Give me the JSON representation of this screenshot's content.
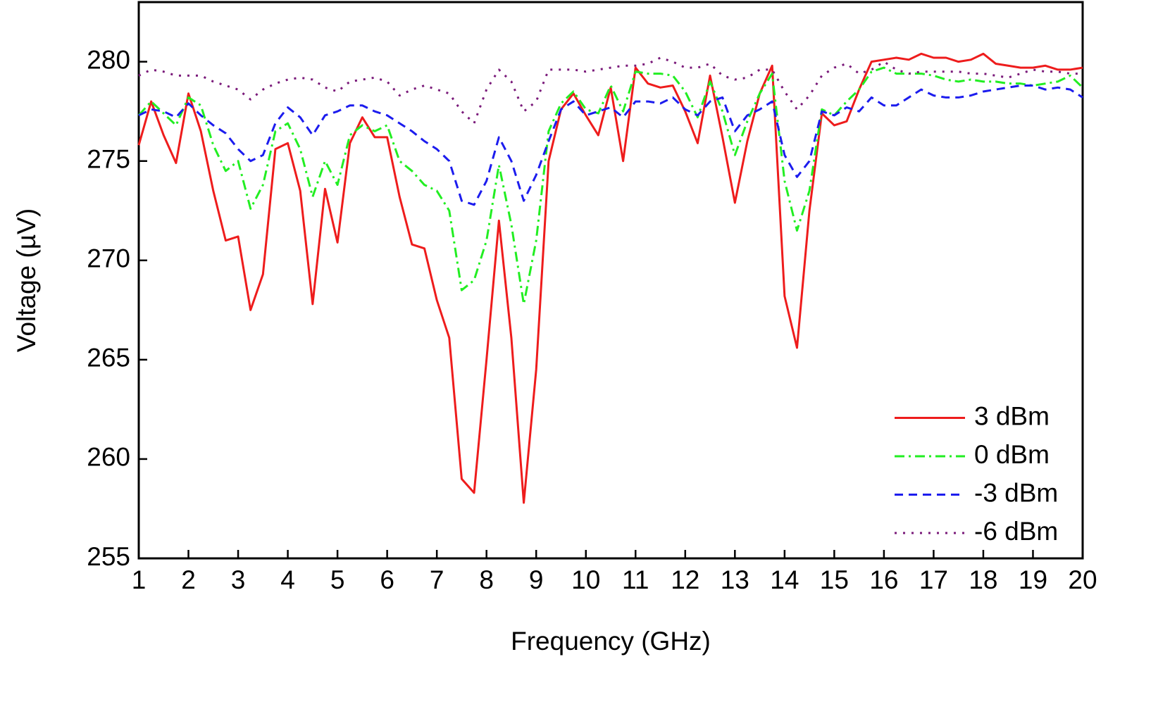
{
  "chart_data": {
    "type": "line",
    "xlabel": "Frequency (GHz)",
    "ylabel": "Voltage (µV)",
    "xlim": [
      1,
      20
    ],
    "ylim": [
      255,
      283
    ],
    "xticks": [
      1,
      2,
      3,
      4,
      5,
      6,
      7,
      8,
      9,
      10,
      11,
      12,
      13,
      14,
      15,
      16,
      17,
      18,
      19,
      20
    ],
    "yticks": [
      255,
      260,
      265,
      270,
      275,
      280
    ],
    "legend": "lower right",
    "x": [
      1,
      1.25,
      1.5,
      1.75,
      2,
      2.25,
      2.5,
      2.75,
      3,
      3.25,
      3.5,
      3.75,
      4,
      4.25,
      4.5,
      4.75,
      5,
      5.25,
      5.5,
      5.75,
      6,
      6.25,
      6.5,
      6.75,
      7,
      7.25,
      7.5,
      7.75,
      8,
      8.25,
      8.5,
      8.75,
      9,
      9.25,
      9.5,
      9.75,
      10,
      10.25,
      10.5,
      10.75,
      11,
      11.25,
      11.5,
      11.75,
      12,
      12.25,
      12.5,
      12.75,
      13,
      13.25,
      13.5,
      13.75,
      14,
      14.25,
      14.5,
      14.75,
      15,
      15.25,
      15.5,
      15.75,
      16,
      16.25,
      16.5,
      16.75,
      17,
      17.25,
      17.5,
      17.75,
      18,
      18.25,
      18.5,
      18.75,
      19,
      19.25,
      19.5,
      19.75,
      20
    ],
    "series": [
      {
        "name": "3 dBm",
        "color": "#ee1c1c",
        "dash": "solid",
        "values": [
          275.8,
          278.0,
          276.3,
          274.9,
          278.4,
          276.5,
          273.5,
          271.0,
          271.2,
          267.5,
          269.3,
          275.6,
          275.9,
          273.5,
          267.8,
          273.6,
          270.9,
          275.9,
          277.2,
          276.2,
          276.2,
          273.2,
          270.8,
          270.6,
          268.0,
          266.1,
          259.0,
          258.3,
          265.0,
          272.0,
          266.1,
          257.8,
          264.5,
          275.0,
          277.6,
          278.4,
          277.3,
          276.3,
          278.7,
          275.0,
          279.7,
          278.9,
          278.7,
          278.8,
          277.5,
          275.9,
          279.3,
          276.2,
          272.9,
          276.0,
          278.4,
          279.8,
          268.2,
          265.6,
          272.5,
          277.4,
          276.8,
          277.0,
          278.6,
          280.0,
          280.1,
          280.2,
          280.1,
          280.4,
          280.2,
          280.2,
          280.0,
          280.1,
          280.4,
          279.9,
          279.8,
          279.7,
          279.7,
          279.8,
          279.6,
          279.6,
          279.7
        ]
      },
      {
        "name": "0 dBm",
        "color": "#22ee22",
        "dash": "dashdot",
        "values": [
          277.3,
          278.0,
          277.4,
          276.8,
          278.2,
          277.8,
          275.8,
          274.5,
          275.0,
          272.6,
          273.8,
          276.5,
          276.9,
          275.6,
          273.2,
          275.0,
          273.8,
          276.3,
          276.8,
          276.5,
          276.8,
          275.0,
          274.5,
          273.8,
          273.5,
          272.5,
          268.5,
          269.0,
          271.0,
          274.8,
          271.8,
          267.8,
          271.0,
          276.5,
          277.9,
          278.5,
          277.6,
          277.4,
          278.8,
          277.5,
          279.5,
          279.4,
          279.4,
          279.3,
          278.5,
          277.2,
          279.0,
          277.5,
          275.3,
          277.0,
          278.4,
          279.4,
          274.0,
          271.5,
          273.5,
          277.6,
          277.3,
          278.0,
          278.6,
          279.5,
          279.7,
          279.4,
          279.4,
          279.4,
          279.3,
          279.1,
          279.0,
          279.1,
          279.0,
          279.0,
          278.9,
          278.9,
          278.8,
          278.9,
          279.0,
          279.3,
          278.7
        ]
      },
      {
        "name": "-3 dBm",
        "color": "#1c1cee",
        "dash": "dash",
        "values": [
          277.3,
          277.6,
          277.5,
          277.2,
          277.9,
          277.3,
          276.8,
          276.4,
          275.6,
          275.0,
          275.3,
          276.9,
          277.7,
          277.2,
          276.3,
          277.3,
          277.5,
          277.8,
          277.8,
          277.5,
          277.3,
          276.9,
          276.5,
          276.0,
          275.6,
          275.0,
          273.0,
          272.8,
          274.0,
          276.2,
          275.0,
          273.0,
          274.3,
          276.0,
          277.6,
          278.0,
          277.3,
          277.5,
          277.7,
          277.2,
          278.0,
          278.0,
          277.9,
          278.2,
          277.6,
          277.3,
          278.0,
          278.2,
          276.5,
          277.3,
          277.6,
          278.0,
          275.3,
          274.2,
          275.0,
          277.5,
          277.3,
          277.7,
          277.5,
          278.2,
          277.8,
          277.8,
          278.2,
          278.6,
          278.3,
          278.2,
          278.2,
          278.3,
          278.5,
          278.6,
          278.7,
          278.8,
          278.8,
          278.6,
          278.7,
          278.6,
          278.2
        ]
      },
      {
        "name": "-6 dBm",
        "color": "#7a1a7a",
        "dash": "dot",
        "values": [
          279.3,
          279.6,
          279.5,
          279.3,
          279.3,
          279.3,
          279.0,
          278.8,
          278.6,
          278.1,
          278.6,
          278.9,
          279.1,
          279.2,
          279.1,
          278.7,
          278.5,
          279.0,
          279.1,
          279.2,
          279.0,
          278.3,
          278.6,
          278.8,
          278.6,
          278.4,
          277.5,
          276.9,
          278.6,
          279.6,
          279.0,
          277.5,
          278.0,
          279.6,
          279.6,
          279.6,
          279.5,
          279.6,
          279.7,
          279.8,
          279.8,
          279.9,
          280.2,
          280.0,
          279.7,
          279.7,
          279.9,
          279.3,
          279.1,
          279.2,
          279.6,
          279.6,
          278.5,
          277.6,
          278.3,
          279.3,
          279.7,
          279.9,
          279.4,
          279.6,
          280.0,
          279.6,
          279.4,
          279.5,
          279.5,
          279.5,
          279.5,
          279.4,
          279.4,
          279.3,
          279.2,
          279.4,
          279.6,
          279.5,
          279.5,
          279.4,
          279.4
        ]
      }
    ]
  }
}
